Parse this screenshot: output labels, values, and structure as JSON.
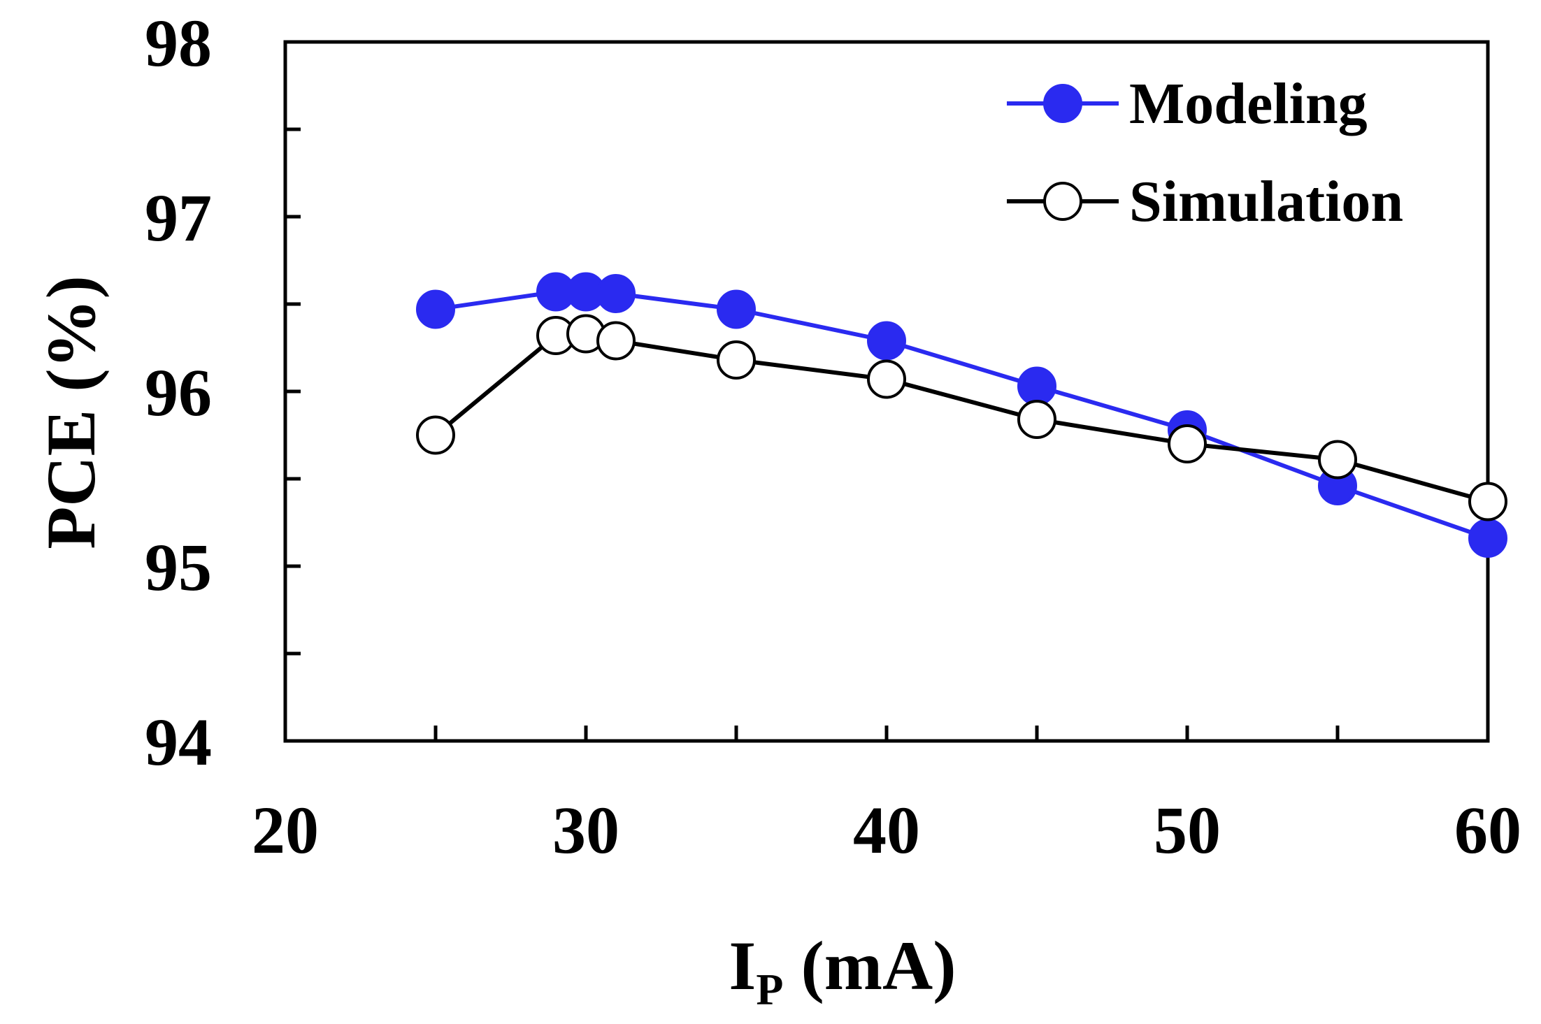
{
  "chart_data": {
    "type": "line",
    "title": "",
    "xlabel_main": "I",
    "xlabel_sub": "P",
    "xlabel_rest": " (mA)",
    "ylabel": "PCE (%)",
    "xlim": [
      20,
      60
    ],
    "ylim": [
      94,
      98
    ],
    "xticks": [
      20,
      30,
      40,
      50,
      60
    ],
    "xminor_ticks": [
      25,
      35,
      45,
      55
    ],
    "yticks": [
      94,
      95,
      96,
      97,
      98
    ],
    "yminor_ticks": [
      94.5,
      95.5,
      96.5,
      97.5
    ],
    "grid": false,
    "legend_position": "top-right",
    "series": [
      {
        "name": "Modeling",
        "color": "#2a2af0",
        "marker": "filled-circle",
        "x": [
          25,
          29,
          30,
          31,
          35,
          40,
          45,
          50,
          55,
          60
        ],
        "y": [
          96.47,
          96.57,
          96.57,
          96.56,
          96.47,
          96.29,
          96.03,
          95.78,
          95.46,
          95.16
        ]
      },
      {
        "name": "Simulation",
        "color": "#000000",
        "marker": "open-circle",
        "x": [
          25,
          29,
          30,
          31,
          35,
          40,
          45,
          50,
          55,
          60
        ],
        "y": [
          95.75,
          96.32,
          96.33,
          96.29,
          96.18,
          96.07,
          95.84,
          95.7,
          95.61,
          95.37
        ]
      }
    ]
  }
}
